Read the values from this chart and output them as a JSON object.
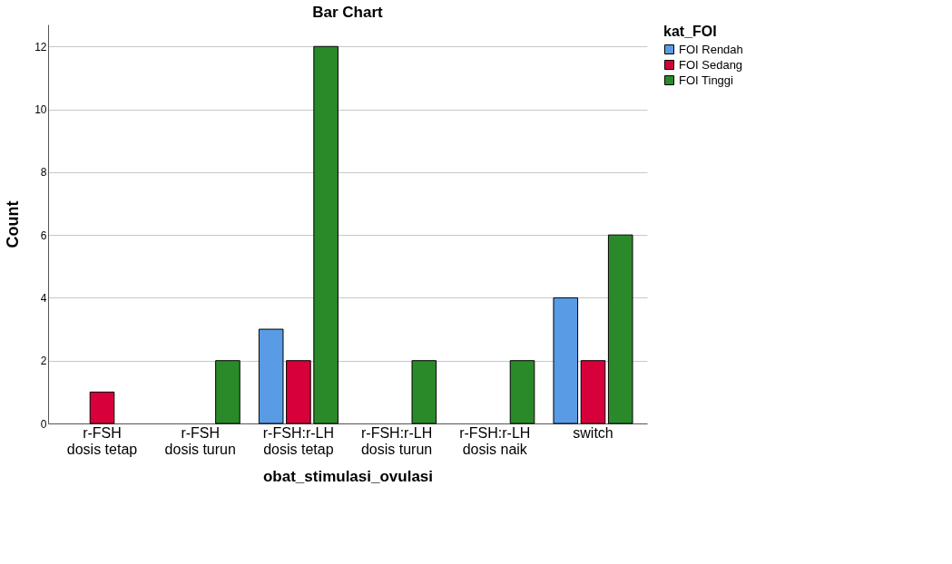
{
  "chart_data": {
    "type": "bar",
    "title": "Bar Chart",
    "xlabel": "obat_stimulasi_ovulasi",
    "ylabel": "Count",
    "legend_title": "kat_FOI",
    "categories": [
      "r-FSH\ndosis tetap",
      "r-FSH\ndosis turun",
      "r-FSH:r-LH\ndosis tetap",
      "r-FSH:r-LH\ndosis turun",
      "r-FSH:r-LH\ndosis naik",
      "switch"
    ],
    "series": [
      {
        "name": "FOI Rendah",
        "color": "#5a9be6",
        "values": [
          null,
          null,
          3,
          null,
          null,
          4
        ]
      },
      {
        "name": "FOI Sedang",
        "color": "#d8003a",
        "values": [
          1,
          null,
          2,
          null,
          null,
          2
        ]
      },
      {
        "name": "FOI Tinggi",
        "color": "#2a8a2a",
        "values": [
          null,
          2,
          12,
          2,
          2,
          6
        ]
      }
    ],
    "ylim": [
      0,
      12.7
    ],
    "yticks": [
      0,
      2,
      4,
      6,
      8,
      10,
      12
    ],
    "grid": "y",
    "legend": "top right"
  }
}
